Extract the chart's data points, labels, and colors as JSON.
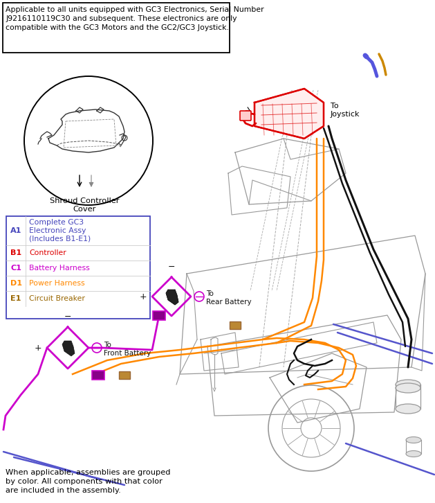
{
  "title_box_text": "Applicable to all units equipped with GC3 Electronics, Serial Number\nJ9216110119C30 and subsequent. These electronics are only\ncompatible with the GC3 Motors and the GC2/GC3 Joystick.",
  "shroud_label": "Shroud Controller\nCover",
  "joystick_label": "To\nJoystick",
  "rear_battery_label": "To\nRear Battery",
  "front_battery_label": "To\nFront Battery",
  "bottom_text": "When applicable, assemblies are grouped\nby color. All components with that color\nare included in the assembly.",
  "legend_items": [
    {
      "code": "A1",
      "code_color": "#4444bb",
      "desc": "Complete GC3\nElectronic Assy\n(Includes B1-E1)",
      "desc_color": "#4444bb"
    },
    {
      "code": "B1",
      "code_color": "#dd0000",
      "desc": "Controller",
      "desc_color": "#dd0000"
    },
    {
      "code": "C1",
      "code_color": "#cc00cc",
      "desc": "Battery Harness",
      "desc_color": "#cc00cc"
    },
    {
      "code": "D1",
      "code_color": "#ff8800",
      "desc": "Power Harness",
      "desc_color": "#ff8800"
    },
    {
      "code": "E1",
      "code_color": "#996600",
      "desc": "Circuit Breaker",
      "desc_color": "#996600"
    }
  ],
  "orange": "#ff8800",
  "purple": "#cc00cc",
  "black_wire": "#111111",
  "blue_line": "#5555cc",
  "red_ctrl": "#dd0000",
  "chassis": "#999999",
  "bg_color": "#ffffff",
  "fig_width": 6.29,
  "fig_height": 7.26,
  "dpi": 100
}
